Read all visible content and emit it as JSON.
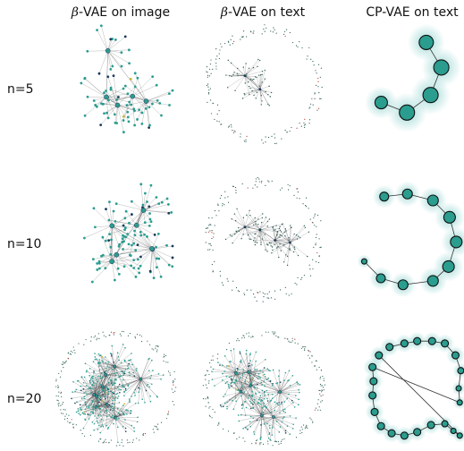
{
  "columns": [
    {
      "id": "beta-image",
      "symbol": "β",
      "rest": "-VAE on image"
    },
    {
      "id": "beta-text",
      "symbol": "β",
      "rest": "-VAE on text"
    },
    {
      "id": "cp-text",
      "symbol": "",
      "rest": "CP-VAE on text"
    }
  ],
  "rows": [
    {
      "label": "n=5"
    },
    {
      "label": "n=10"
    },
    {
      "label": "n=20"
    }
  ],
  "colors": {
    "node_teal": "#2a9d8f",
    "node_dark": "#1a3a5a",
    "node_yellow": "#c9b43a",
    "node_red": "#c0392b",
    "halo": "#8fd3cf",
    "edge": "#333333"
  }
}
